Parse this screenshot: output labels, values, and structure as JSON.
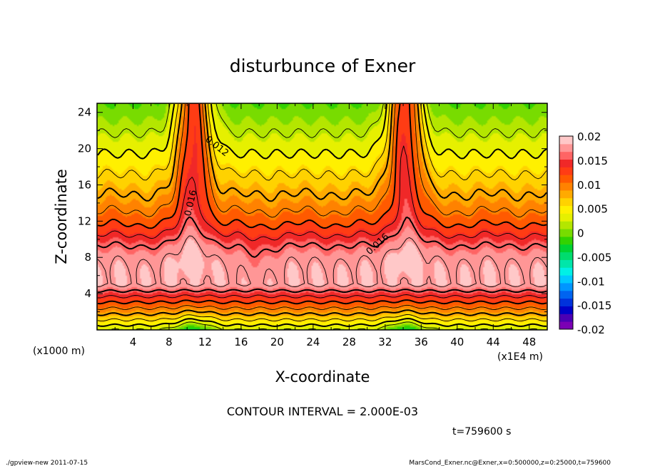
{
  "chart_data": {
    "type": "heatmap",
    "title": "disturbunce of Exner",
    "xlabel": "X-coordinate",
    "ylabel": "Z-coordinate",
    "x_unit_label": "(x1000 m)",
    "x_offset_label": "(x1E4 m)",
    "xlim": [
      0,
      50
    ],
    "ylim": [
      0,
      25
    ],
    "x_ticks": [
      "4",
      "8",
      "12",
      "16",
      "20",
      "24",
      "28",
      "32",
      "36",
      "40",
      "44",
      "48"
    ],
    "y_ticks": [
      "4",
      "8",
      "12",
      "16",
      "20",
      "24"
    ],
    "colorbar": {
      "vmin": -0.02,
      "vmax": 0.02,
      "tick_labels": [
        "0.02",
        "0.015",
        "0.01",
        "0.005",
        "0",
        "-0.005",
        "-0.01",
        "-0.015",
        "-0.02"
      ],
      "colors": [
        "#7b00b4",
        "#4b00b4",
        "#0000c8",
        "#0032dc",
        "#0064f0",
        "#0096ff",
        "#00c8ff",
        "#00f0e6",
        "#00e6aa",
        "#00dc6e",
        "#00d232",
        "#32d200",
        "#78dc00",
        "#b4e600",
        "#e6f000",
        "#fff000",
        "#ffd200",
        "#ffaa00",
        "#ff8200",
        "#ff5a00",
        "#ff3c14",
        "#f02828",
        "#ff6464",
        "#ff9696",
        "#ffc8c8"
      ]
    },
    "contour_labels": [
      "0.012",
      "0.016",
      "0.016"
    ],
    "contour_interval_text": "CONTOUR INTERVAL = 2.000E-03",
    "time_text": "t=759600 s"
  },
  "footer": {
    "left": "./gpview-new   2011-07-15",
    "right": "MarsCond_Exner.nc@Exner,x=0:500000,z=0:25000,t=759600"
  }
}
